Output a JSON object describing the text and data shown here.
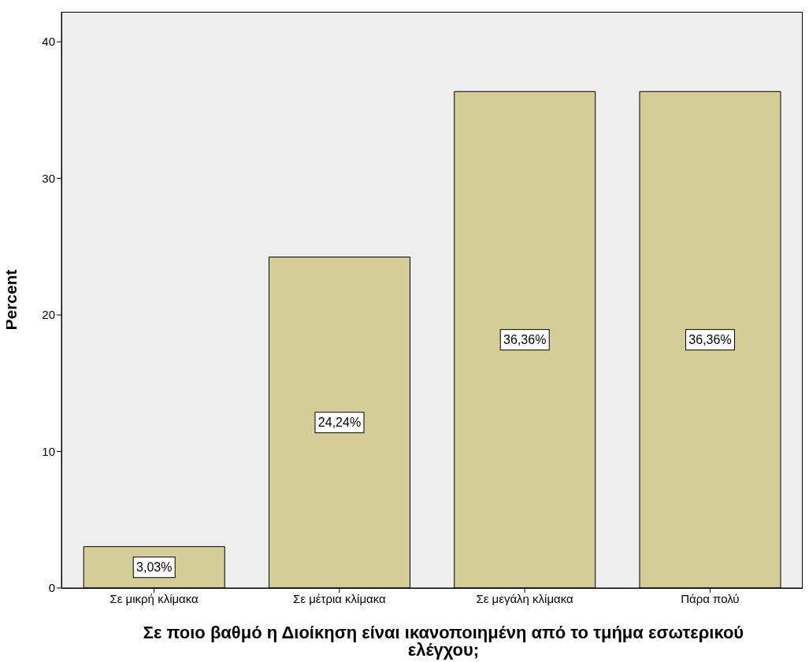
{
  "chart_data": {
    "type": "bar",
    "xlabel": "Σε ποιο βαθμό η Διοίκηση είναι ικανοποιημένη από το τμήμα εσωτερικού ελέγχου;",
    "ylabel": "Percent",
    "categories": [
      "Σε μικρή κλίμακα",
      "Σε μέτρια κλίμακα",
      "Σε μεγάλη κλίμακα",
      "Πάρα πολύ"
    ],
    "values": [
      3.03,
      24.24,
      36.36,
      36.36
    ],
    "value_labels": [
      "3,03%",
      "24,24%",
      "36,36%",
      "36,36%"
    ],
    "color": "#d3ce97",
    "ylim": [
      0,
      42.2
    ],
    "yticks": [
      0,
      10,
      20,
      30,
      40
    ],
    "grid": false
  }
}
